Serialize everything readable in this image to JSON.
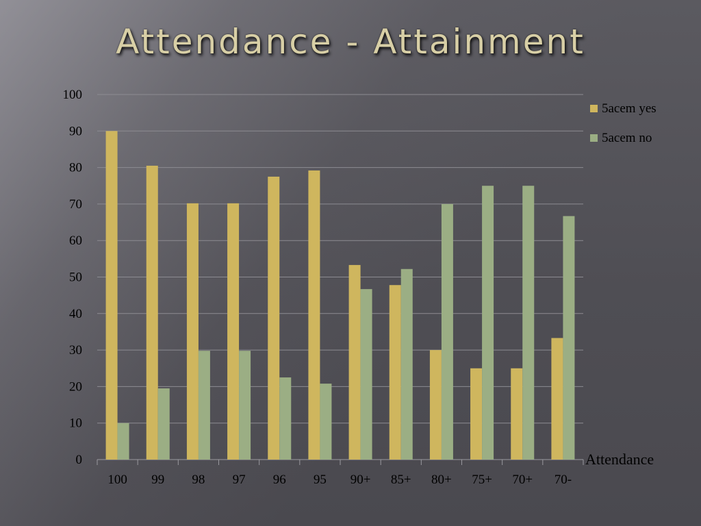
{
  "slide": {
    "title": "Attendance - Attainment"
  },
  "chart_data": {
    "type": "bar",
    "title": "",
    "xlabel": "Attendance",
    "ylabel": "",
    "ylim": [
      0,
      100
    ],
    "yticks": [
      0,
      10,
      20,
      30,
      40,
      50,
      60,
      70,
      80,
      90,
      100
    ],
    "grid": true,
    "legend_position": "top-right",
    "categories": [
      "100",
      "99",
      "98",
      "97",
      "96",
      "95",
      "90+",
      "85+",
      "80+",
      "75+",
      "70+",
      "70-"
    ],
    "series": [
      {
        "name": "5acem yes",
        "color": "#cfb65e",
        "values": [
          90,
          80.5,
          70.2,
          70.2,
          77.5,
          79.2,
          53.3,
          47.8,
          30,
          25,
          25,
          33.3
        ]
      },
      {
        "name": "5acem no",
        "color": "#9bae84",
        "values": [
          10,
          19.5,
          29.8,
          29.8,
          22.5,
          20.8,
          46.7,
          52.2,
          70,
          75,
          75,
          66.7
        ]
      }
    ]
  }
}
